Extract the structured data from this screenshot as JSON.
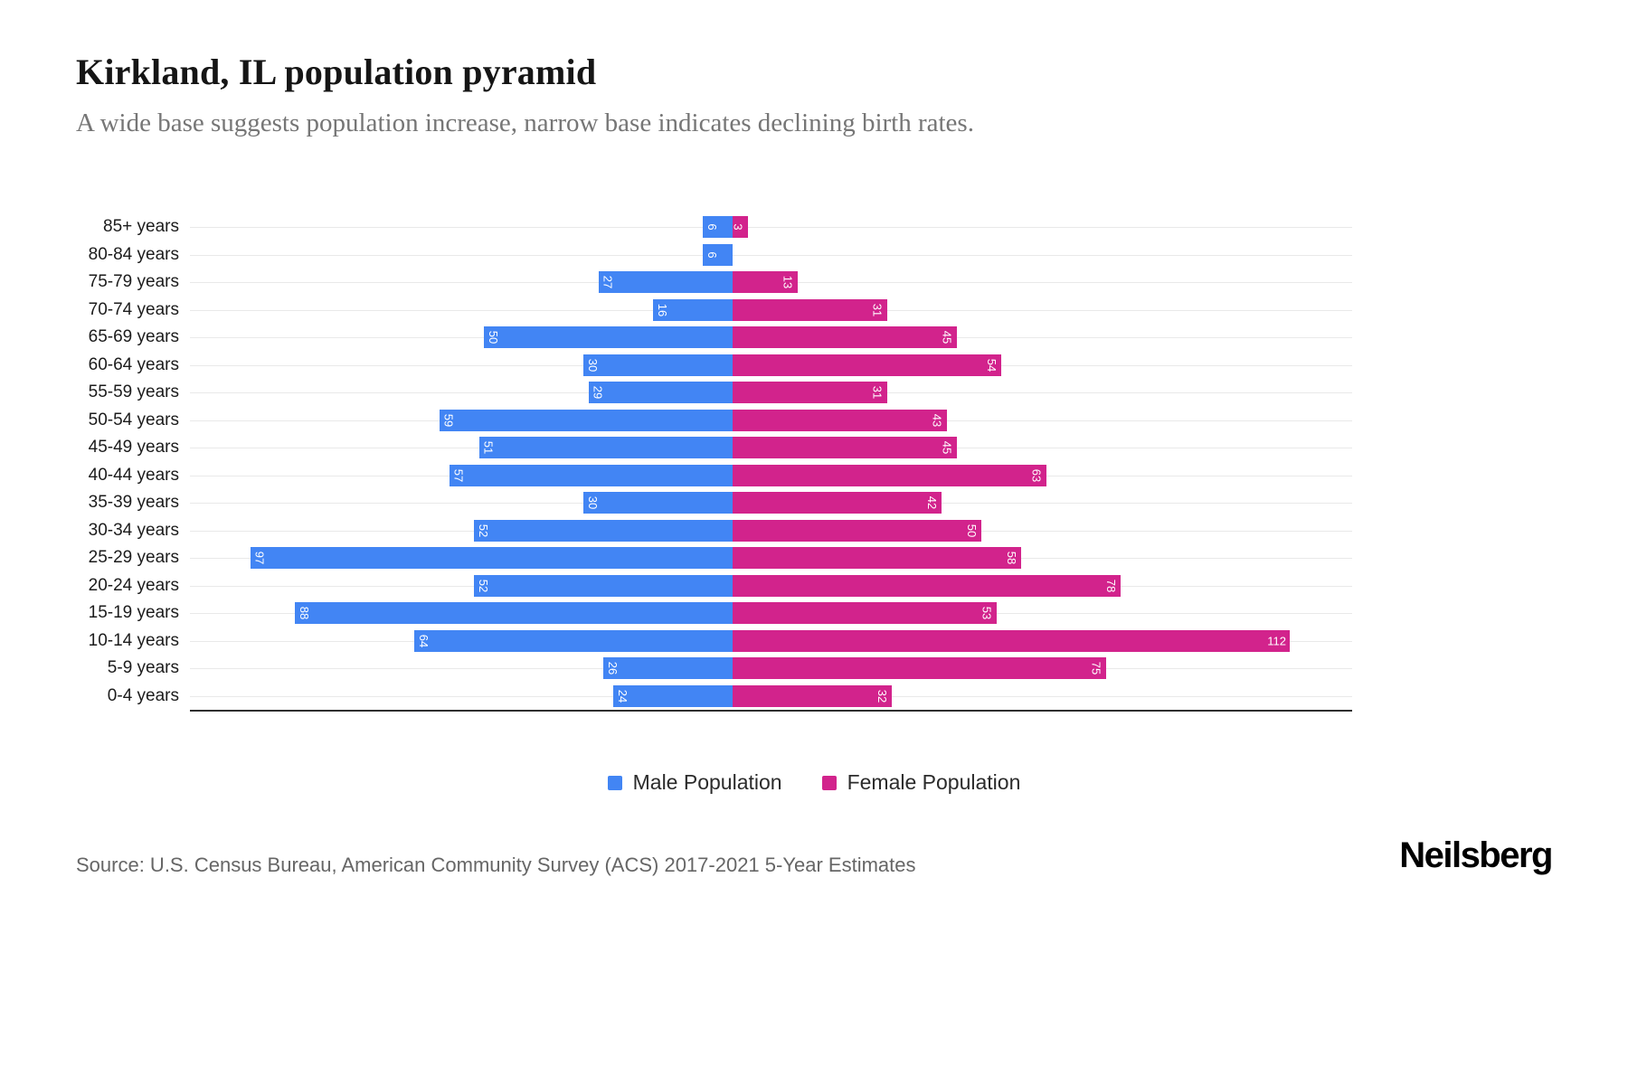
{
  "header": {
    "title": "Kirkland, IL population pyramid",
    "subtitle": "A wide base suggests population increase, narrow base indicates declining birth rates."
  },
  "chart_data": {
    "type": "bar",
    "variant": "population-pyramid",
    "title": "Kirkland, IL population pyramid",
    "categories": [
      "85+ years",
      "80-84 years",
      "75-79 years",
      "70-74 years",
      "65-69 years",
      "60-64 years",
      "55-59 years",
      "50-54 years",
      "45-49 years",
      "40-44 years",
      "35-39 years",
      "30-34 years",
      "25-29 years",
      "20-24 years",
      "15-19 years",
      "10-14 years",
      "5-9 years",
      "0-4 years"
    ],
    "series": [
      {
        "name": "Male Population",
        "color": "#4285f4",
        "direction": "left",
        "values": [
          6,
          6,
          27,
          16,
          50,
          30,
          29,
          59,
          51,
          57,
          30,
          52,
          97,
          52,
          88,
          64,
          26,
          24
        ]
      },
      {
        "name": "Female Population",
        "color": "#d2238c",
        "direction": "right",
        "values": [
          3,
          0,
          13,
          31,
          45,
          54,
          31,
          43,
          45,
          63,
          42,
          50,
          58,
          78,
          53,
          112,
          75,
          32
        ]
      }
    ],
    "xlim_each_side": [
      0,
      115
    ],
    "grid": true,
    "legend_position": "bottom",
    "value_labels": "inside-bar-end"
  },
  "footer": {
    "source": "Source: U.S. Census Bureau, American Community Survey (ACS) 2017-2021 5-Year Estimates",
    "brand": "Neilsberg"
  }
}
